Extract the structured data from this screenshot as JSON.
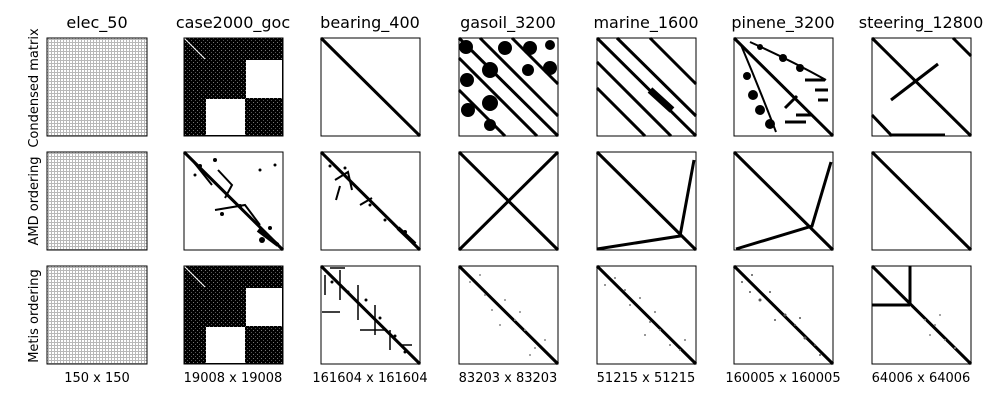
{
  "chart_data": {
    "type": "sparsity-matrix-grid",
    "columns": [
      {
        "name": "elec_50",
        "dims": "150 x 150"
      },
      {
        "name": "case2000_goc",
        "dims": "19008 x 19008"
      },
      {
        "name": "bearing_400",
        "dims": "161604 x 161604"
      },
      {
        "name": "gasoil_3200",
        "dims": "83203 x 83203"
      },
      {
        "name": "marine_1600",
        "dims": "51215 x 51215"
      },
      {
        "name": "pinene_3200",
        "dims": "160005 x 160005"
      },
      {
        "name": "steering_12800",
        "dims": "64006 x 64006"
      }
    ],
    "rows": [
      {
        "label": "Condensed matrix"
      },
      {
        "label": "AMD ordering"
      },
      {
        "label": "Metis ordering"
      }
    ]
  }
}
